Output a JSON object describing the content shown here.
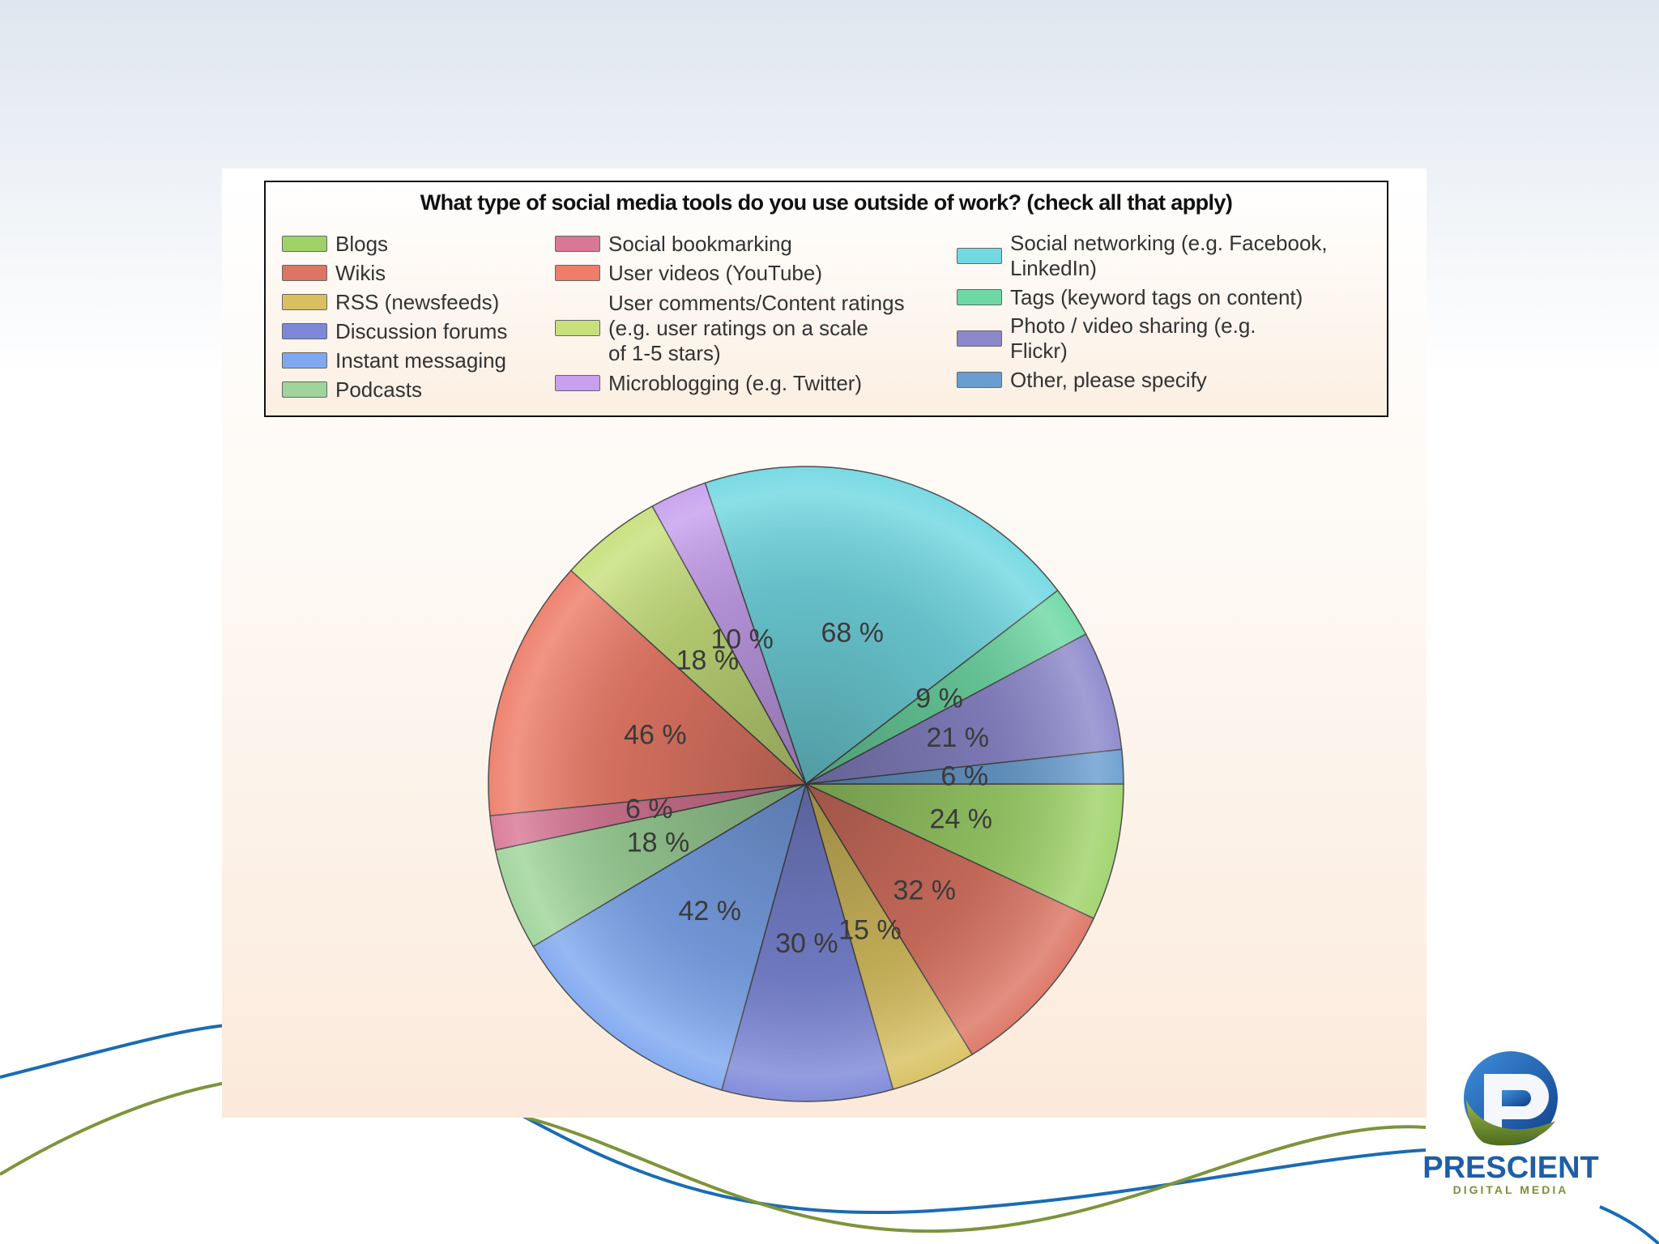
{
  "brand": {
    "name": "PRESCIENT",
    "tagline": "DIGITAL MEDIA",
    "colors": {
      "blue": "#1d5ea8",
      "green": "#7a9236"
    }
  },
  "chart_data": {
    "type": "pie",
    "title": "What type of social media tools do you use outside of work? (check all that apply)",
    "legend_placement": "top",
    "slices": [
      {
        "name": "Blogs",
        "value": 24,
        "label": "24 %",
        "color": "#9fd36a"
      },
      {
        "name": "Wikis",
        "value": 32,
        "label": "32 %",
        "color": "#dc7564"
      },
      {
        "name": "RSS (newsfeeds)",
        "value": 15,
        "label": "15 %",
        "color": "#d8c060"
      },
      {
        "name": "Discussion forums",
        "value": 30,
        "label": "30 %",
        "color": "#7d88d8"
      },
      {
        "name": "Instant messaging",
        "value": 42,
        "label": "42 %",
        "color": "#7fa8f0"
      },
      {
        "name": "Podcasts",
        "value": 18,
        "label": "18 %",
        "color": "#9fd49a"
      },
      {
        "name": "Social bookmarking",
        "value": 6,
        "label": "6 %",
        "color": "#d97896"
      },
      {
        "name": "User videos (YouTube)",
        "value": 46,
        "label": "46 %",
        "color": "#ee7d6a"
      },
      {
        "name": "User comments/Content ratings\n(e.g. user ratings on a scale\nof 1-5 stars)",
        "value": 18,
        "label": "18 %",
        "color": "#c7e07c"
      },
      {
        "name": "Microblogging (e.g. Twitter)",
        "value": 10,
        "label": "10 %",
        "color": "#c7a0ee"
      },
      {
        "name": "Social networking (e.g. Facebook,\nLinkedIn)",
        "value": 68,
        "label": "68 %",
        "color": "#72d8e2"
      },
      {
        "name": "Tags (keyword tags on content)",
        "value": 9,
        "label": "9 %",
        "color": "#6ed8a4"
      },
      {
        "name": "Photo / video sharing (e.g.\nFlickr)",
        "value": 21,
        "label": "21 %",
        "color": "#8c88cc"
      },
      {
        "name": "Other, please specify",
        "value": 6,
        "label": "6 %",
        "color": "#6a9ed0"
      }
    ],
    "legend_columns": [
      [
        0,
        1,
        2,
        3,
        4,
        5
      ],
      [
        6,
        7,
        8,
        9
      ],
      [
        10,
        11,
        12,
        13
      ]
    ]
  }
}
